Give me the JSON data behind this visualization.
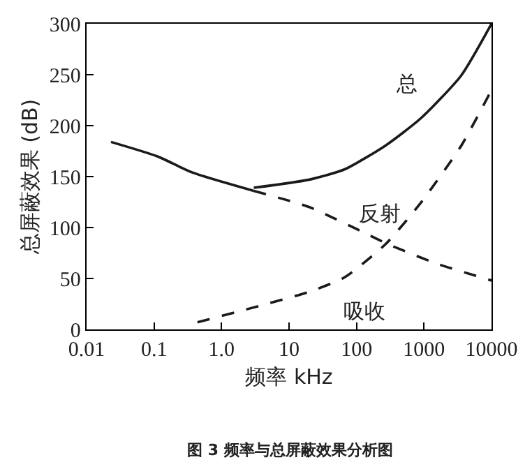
{
  "chart_data": {
    "type": "line",
    "xlabel": "频率 kHz",
    "ylabel": "总屏蔽效果 (dB)",
    "log": "x",
    "xlim": [
      0.01,
      10000
    ],
    "xticks": [
      {
        "value": 0.01,
        "label": "0.01"
      },
      {
        "value": 0.1,
        "label": "0.1"
      },
      {
        "value": 1,
        "label": "1.0"
      },
      10,
      100,
      1000,
      10000
    ],
    "ylim": [
      0,
      300
    ],
    "yticks": [
      0,
      50,
      100,
      150,
      200,
      250,
      300
    ],
    "legend": false,
    "series": [
      {
        "color": "#1a1a1a",
        "line_style": "solid",
        "x": [
          0.023,
          0.11,
          0.37,
          3.0
        ],
        "values": [
          184,
          170,
          154,
          136
        ]
      },
      {
        "name": "总",
        "color": "#1a1a1a",
        "line_style": "solid",
        "x": [
          3.0,
          20,
          66,
          263,
          890,
          3540,
          10000
        ],
        "values": [
          139,
          147,
          157,
          180,
          207,
          249,
          300
        ]
      },
      {
        "name": "反射",
        "color": "#1a1a1a",
        "line_style": "dashed",
        "x": [
          3.0,
          20,
          112,
          263,
          1480,
          10000
        ],
        "values": [
          136,
          120,
          97,
          85,
          65,
          48
        ]
      },
      {
        "name": "吸收",
        "color": "#1a1a1a",
        "line_style": "dashed",
        "x": [
          0.44,
          3.6,
          20,
          66,
          263,
          890,
          3540,
          10000
        ],
        "values": [
          7,
          23,
          37,
          51,
          83,
          124,
          180,
          235
        ]
      }
    ],
    "annotations": [
      "图 3 频率与总屏蔽效果分析图"
    ]
  }
}
